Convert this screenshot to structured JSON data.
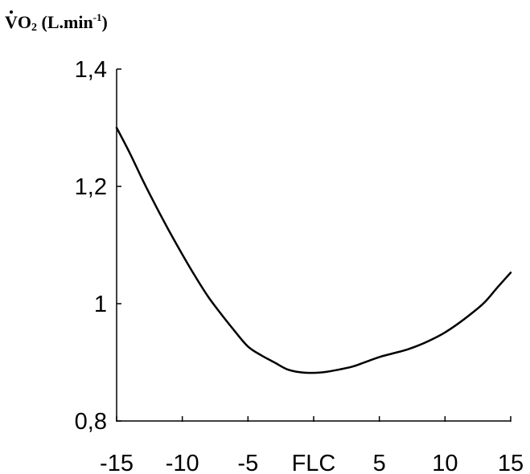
{
  "chart_data": {
    "type": "line",
    "ylabel": {
      "v": "V",
      "o": "O",
      "sub": "2",
      "unit_open": " (L.min",
      "unit_sup": "-1",
      "unit_close": ")"
    },
    "xlabel": "",
    "x_ticks": [
      {
        "value": -15,
        "label": "-15"
      },
      {
        "value": -10,
        "label": "-10"
      },
      {
        "value": -5,
        "label": "-5"
      },
      {
        "value": 0,
        "label": "FLC"
      },
      {
        "value": 5,
        "label": "5"
      },
      {
        "value": 10,
        "label": "10"
      },
      {
        "value": 15,
        "label": "15"
      }
    ],
    "y_ticks": [
      {
        "value": 0.8,
        "label": "0,8"
      },
      {
        "value": 1.0,
        "label": "1"
      },
      {
        "value": 1.2,
        "label": "1,2"
      },
      {
        "value": 1.4,
        "label": "1,4"
      }
    ],
    "xlim": [
      -15,
      15
    ],
    "ylim": [
      0.8,
      1.4
    ],
    "grid": false,
    "series": [
      {
        "x": [
          -15,
          -14,
          -13,
          -12,
          -11,
          -10,
          -9,
          -8,
          -7,
          -6,
          -5,
          -4,
          -3,
          -2,
          -1,
          0,
          1,
          2,
          3,
          4,
          5,
          6,
          7,
          8,
          9,
          10,
          11,
          12,
          13,
          14,
          15
        ],
        "y": [
          1.3,
          1.257,
          1.21,
          1.166,
          1.124,
          1.084,
          1.046,
          1.011,
          0.981,
          0.953,
          0.927,
          0.912,
          0.9,
          0.888,
          0.883,
          0.882,
          0.884,
          0.888,
          0.893,
          0.901,
          0.909,
          0.915,
          0.921,
          0.929,
          0.939,
          0.951,
          0.966,
          0.983,
          1.002,
          1.028,
          1.053
        ]
      }
    ],
    "line_color": "#000000"
  }
}
